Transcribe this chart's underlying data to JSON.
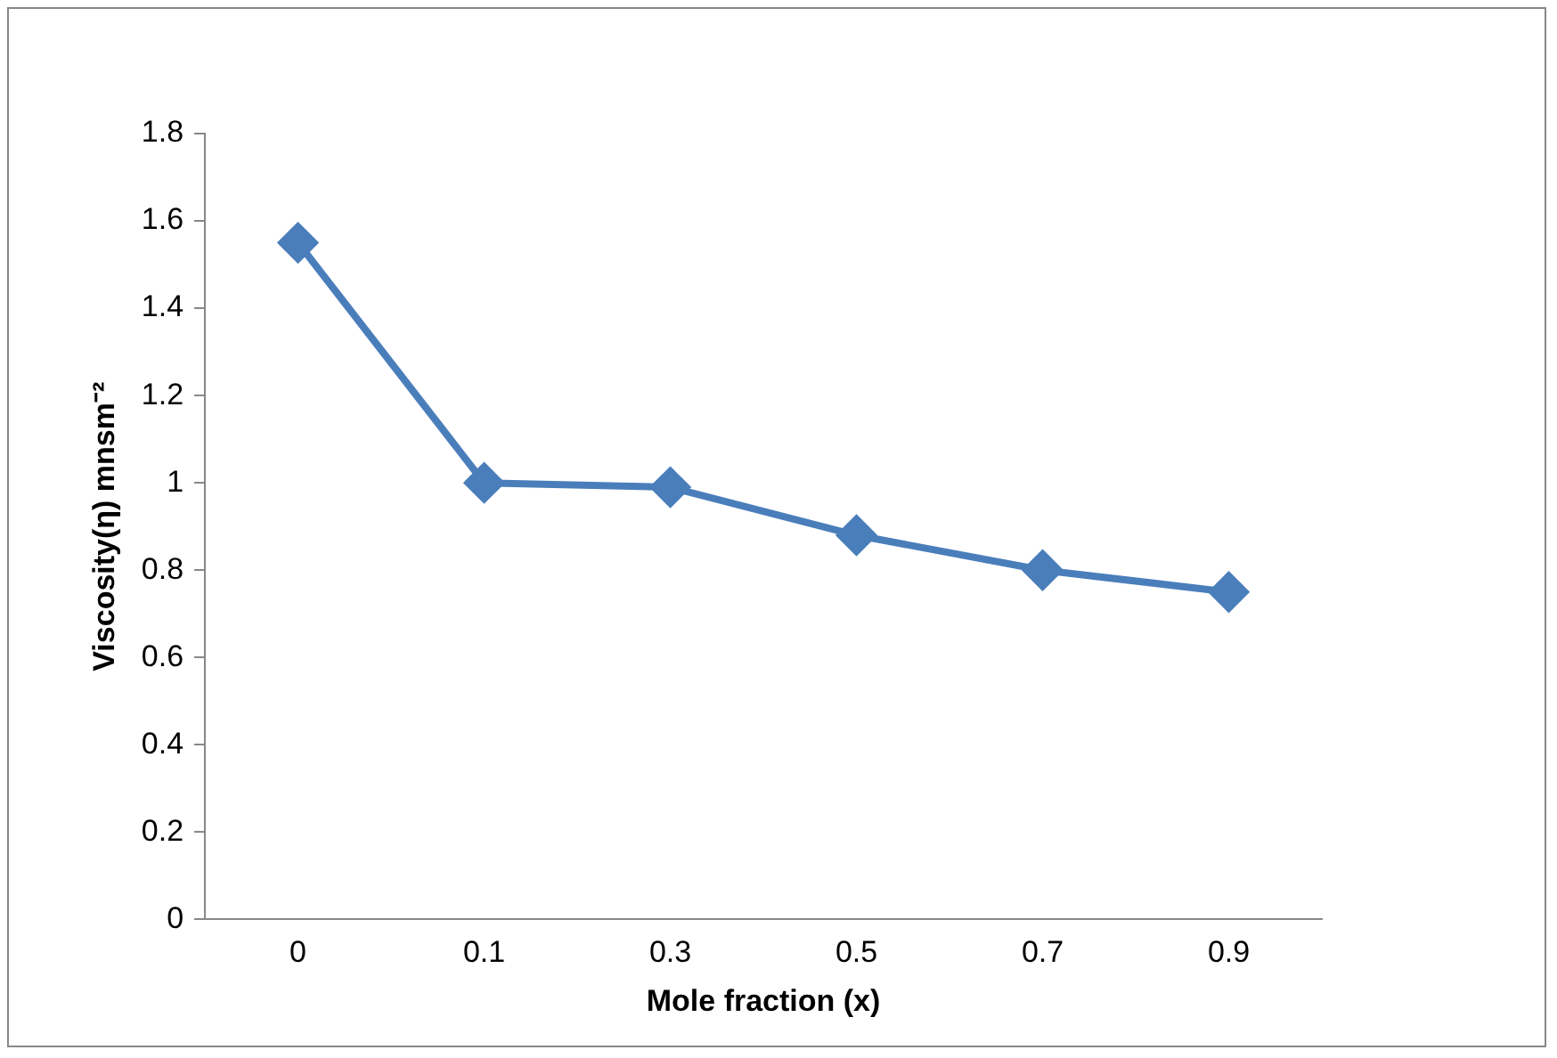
{
  "chart_data": {
    "type": "line",
    "xlabel": "Mole fraction (x)",
    "ylabel": "Viscosity(η) mnsm⁻²",
    "categories": [
      "0",
      "0.1",
      "0.3",
      "0.5",
      "0.7",
      "0.9"
    ],
    "series": [
      {
        "color": "#4a7ebb",
        "values": [
          1.55,
          1.0,
          0.99,
          0.88,
          0.8,
          0.75
        ]
      }
    ],
    "ylim": [
      0,
      1.8
    ],
    "yticks": [
      0,
      0.2,
      0.4,
      0.6,
      0.8,
      1,
      1.2,
      1.4,
      1.6,
      1.8
    ],
    "grid": false,
    "legend": false,
    "marker": "diamond",
    "line_style": "solid"
  }
}
